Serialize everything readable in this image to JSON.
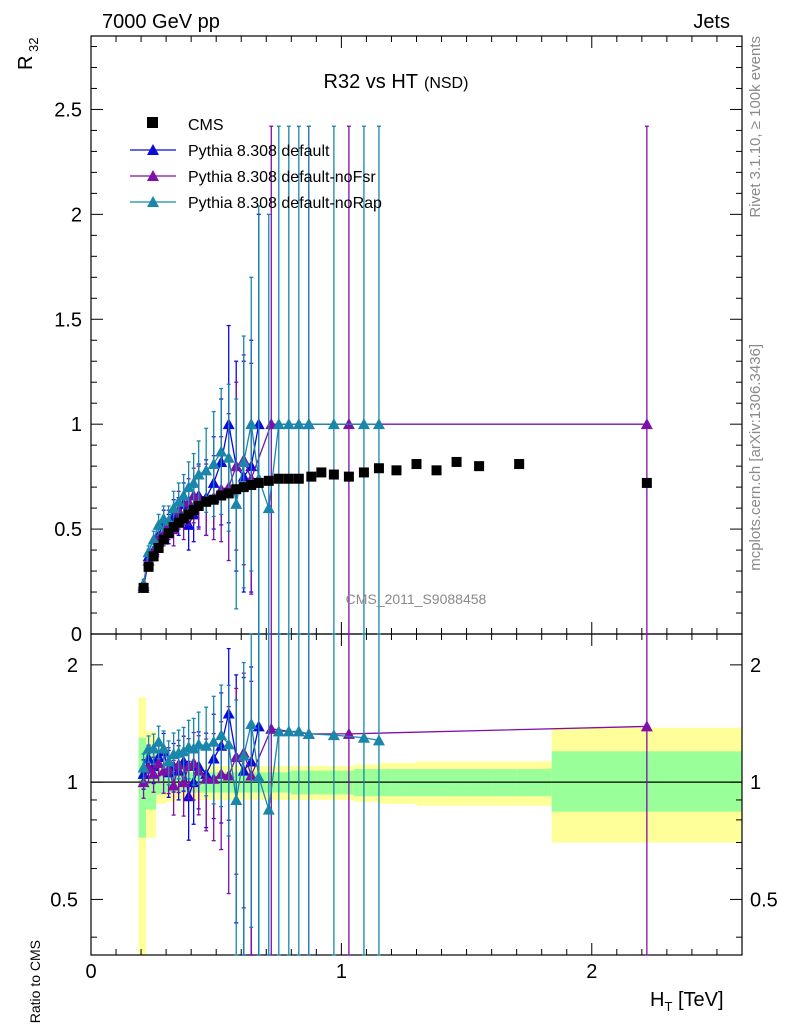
{
  "header": {
    "energy_label": "7000 GeV pp",
    "process_label": "Jets"
  },
  "side_text": {
    "rivet": "Rivet 3.1.10, ≥ 100k events",
    "mcplots": "mcplots.cern.ch [arXiv:1306.3436]"
  },
  "watermark": "CMS_2011_S9088458",
  "colors": {
    "cms": "#000000",
    "default": "#0a0adc",
    "noFsr": "#7f0fa8",
    "noRap": "#1a86aa",
    "band_yellow": "#ffff99",
    "band_green": "#99ff99"
  },
  "chart_data": {
    "type": "scatter",
    "title_main": "R32 vs HT",
    "title_sub": "(NSD)",
    "ylabel_main_base": "R",
    "ylabel_main_sub": "32",
    "ylabel_ratio": "Ratio to CMS",
    "xlabel_base": "H",
    "xlabel_sub": "T",
    "xlabel_unit": " [TeV]",
    "xlim": [
      0,
      2.6
    ],
    "ylim_main": [
      0,
      2.85
    ],
    "ylim_ratio": [
      0.36,
      2.4
    ],
    "x_ticks": [
      "0",
      "1",
      "2"
    ],
    "y_ticks_main": [
      "0",
      "0.5",
      "1",
      "1.5",
      "2",
      "2.5"
    ],
    "y_ticks_ratio": [
      "0.5",
      "1",
      "2"
    ],
    "legend": {
      "placement": "top-left",
      "entries": [
        "CMS",
        "Pythia 8.308 default",
        "Pythia 8.308 default-noFsr",
        "Pythia 8.308 default-noRap"
      ]
    },
    "series": [
      {
        "name": "CMS",
        "x": [
          0.21,
          0.23,
          0.25,
          0.27,
          0.29,
          0.31,
          0.33,
          0.35,
          0.37,
          0.39,
          0.41,
          0.43,
          0.46,
          0.49,
          0.52,
          0.55,
          0.58,
          0.61,
          0.64,
          0.67,
          0.71,
          0.75,
          0.79,
          0.83,
          0.88,
          0.92,
          0.97,
          1.03,
          1.09,
          1.15,
          1.22,
          1.3,
          1.38,
          1.46,
          1.55,
          1.71,
          2.22
        ],
        "y": [
          0.22,
          0.32,
          0.37,
          0.41,
          0.45,
          0.48,
          0.51,
          0.53,
          0.55,
          0.57,
          0.59,
          0.61,
          0.63,
          0.64,
          0.66,
          0.67,
          0.69,
          0.7,
          0.71,
          0.72,
          0.73,
          0.74,
          0.74,
          0.74,
          0.75,
          0.77,
          0.76,
          0.75,
          0.77,
          0.79,
          0.78,
          0.81,
          0.78,
          0.82,
          0.8,
          0.81,
          0.72
        ]
      },
      {
        "name": "Pythia 8.308 default",
        "x": [
          0.21,
          0.23,
          0.25,
          0.27,
          0.29,
          0.31,
          0.33,
          0.35,
          0.37,
          0.39,
          0.41,
          0.43,
          0.46,
          0.49,
          0.52,
          0.55,
          0.58,
          0.61,
          0.64,
          0.67
        ],
        "y": [
          0.23,
          0.37,
          0.4,
          0.47,
          0.53,
          0.5,
          0.56,
          0.56,
          0.62,
          0.52,
          0.57,
          0.66,
          0.65,
          0.72,
          0.82,
          1.0,
          0.8,
          0.75,
          0.8,
          1.0
        ],
        "err": [
          0.02,
          0.03,
          0.04,
          0.05,
          0.06,
          0.07,
          0.08,
          0.09,
          0.1,
          0.12,
          0.13,
          0.15,
          0.18,
          0.22,
          0.3,
          0.47,
          0.5,
          0.55,
          0.6,
          1.0
        ]
      },
      {
        "name": "Pythia 8.308 default-noFsr",
        "x": [
          0.21,
          0.23,
          0.25,
          0.27,
          0.29,
          0.31,
          0.33,
          0.35,
          0.37,
          0.39,
          0.41,
          0.43,
          0.46,
          0.49,
          0.52,
          0.55,
          0.58,
          0.61,
          0.64,
          0.72,
          0.87,
          1.03,
          2.22
        ],
        "y": [
          0.22,
          0.35,
          0.39,
          0.46,
          0.48,
          0.52,
          0.5,
          0.59,
          0.55,
          0.63,
          0.66,
          0.65,
          0.64,
          0.65,
          0.69,
          0.7,
          0.8,
          0.83,
          0.74,
          1.0,
          1.0,
          1.0,
          1.0
        ],
        "err": [
          0.02,
          0.03,
          0.04,
          0.05,
          0.06,
          0.07,
          0.08,
          0.09,
          0.1,
          0.11,
          0.13,
          0.15,
          0.17,
          0.2,
          0.25,
          0.35,
          0.4,
          0.5,
          0.55,
          1.42,
          1.42,
          1.42,
          1.42
        ]
      },
      {
        "name": "Pythia 8.308 default-noRap",
        "x": [
          0.21,
          0.23,
          0.25,
          0.27,
          0.29,
          0.31,
          0.33,
          0.35,
          0.37,
          0.39,
          0.41,
          0.43,
          0.46,
          0.49,
          0.52,
          0.55,
          0.58,
          0.61,
          0.64,
          0.67,
          0.71,
          0.75,
          0.79,
          0.83,
          0.87,
          0.97,
          1.09,
          1.15
        ],
        "y": [
          0.24,
          0.39,
          0.45,
          0.52,
          0.55,
          0.54,
          0.6,
          0.63,
          0.66,
          0.7,
          0.72,
          0.76,
          0.78,
          0.81,
          0.87,
          0.84,
          0.62,
          0.82,
          1.0,
          0.74,
          0.6,
          1.0,
          1.0,
          1.0,
          1.0,
          1.0,
          1.0,
          1.0
        ],
        "err": [
          0.02,
          0.03,
          0.04,
          0.05,
          0.06,
          0.07,
          0.08,
          0.09,
          0.1,
          0.12,
          0.14,
          0.16,
          0.2,
          0.25,
          0.3,
          0.35,
          0.5,
          0.6,
          0.7,
          1.3,
          1.4,
          1.42,
          1.42,
          1.42,
          1.42,
          1.42,
          1.42,
          1.42
        ]
      }
    ],
    "ratio_series": [
      {
        "name": "Pythia 8.308 default",
        "x": [
          0.21,
          0.23,
          0.25,
          0.27,
          0.29,
          0.31,
          0.33,
          0.35,
          0.37,
          0.39,
          0.41,
          0.43,
          0.46,
          0.49,
          0.52,
          0.55,
          0.58,
          0.61,
          0.64,
          0.67
        ],
        "y": [
          1.05,
          1.15,
          1.1,
          1.16,
          1.2,
          1.06,
          1.1,
          1.07,
          1.13,
          0.92,
          1.0,
          1.1,
          1.05,
          1.15,
          1.24,
          1.5,
          1.16,
          1.07,
          1.13,
          1.39
        ]
      },
      {
        "name": "Pythia 8.308 default-noFsr",
        "x": [
          0.21,
          0.23,
          0.25,
          0.27,
          0.29,
          0.31,
          0.33,
          0.35,
          0.37,
          0.39,
          0.41,
          0.43,
          0.46,
          0.49,
          0.52,
          0.55,
          0.58,
          0.61,
          0.64,
          0.72,
          0.87,
          1.03,
          2.22
        ],
        "y": [
          1.0,
          1.09,
          1.05,
          1.12,
          1.07,
          1.08,
          0.98,
          1.11,
          1.0,
          1.1,
          1.12,
          1.07,
          1.02,
          1.02,
          1.05,
          1.04,
          1.16,
          1.19,
          1.04,
          1.37,
          1.33,
          1.33,
          1.39
        ]
      },
      {
        "name": "Pythia 8.308 default-noRap",
        "x": [
          0.21,
          0.23,
          0.25,
          0.27,
          0.29,
          0.31,
          0.33,
          0.35,
          0.37,
          0.39,
          0.41,
          0.43,
          0.46,
          0.49,
          0.52,
          0.55,
          0.58,
          0.61,
          0.64,
          0.67,
          0.71,
          0.75,
          0.79,
          0.83,
          0.87,
          0.97,
          1.09,
          1.15
        ],
        "y": [
          1.09,
          1.22,
          1.22,
          1.27,
          1.22,
          1.13,
          1.18,
          1.19,
          1.2,
          1.23,
          1.22,
          1.25,
          1.24,
          1.27,
          1.32,
          1.25,
          0.9,
          1.17,
          1.41,
          1.03,
          0.85,
          1.35,
          1.35,
          1.35,
          1.33,
          1.32,
          1.3,
          1.28
        ]
      }
    ],
    "uncertainty_bands": {
      "x": [
        0.19,
        0.22,
        0.26,
        0.3,
        0.34,
        0.38,
        0.42,
        0.46,
        0.5,
        0.55,
        0.6,
        0.65,
        0.7,
        0.75,
        0.8,
        0.85,
        0.9,
        0.95,
        1.0,
        1.05,
        1.1,
        1.15,
        1.2,
        1.25,
        1.3,
        1.35,
        1.4,
        1.45,
        1.5,
        1.6,
        1.7,
        1.84,
        2.6
      ],
      "yellow_lo": [
        0.36,
        0.72,
        0.88,
        0.89,
        0.9,
        0.9,
        0.9,
        0.9,
        0.9,
        0.9,
        0.9,
        0.9,
        0.9,
        0.9,
        0.9,
        0.9,
        0.9,
        0.9,
        0.9,
        0.89,
        0.89,
        0.88,
        0.88,
        0.88,
        0.87,
        0.87,
        0.87,
        0.87,
        0.87,
        0.87,
        0.87,
        0.7
      ],
      "yellow_hi": [
        1.65,
        1.35,
        1.12,
        1.11,
        1.1,
        1.1,
        1.1,
        1.1,
        1.1,
        1.1,
        1.1,
        1.1,
        1.1,
        1.1,
        1.1,
        1.1,
        1.1,
        1.1,
        1.1,
        1.11,
        1.11,
        1.12,
        1.12,
        1.12,
        1.13,
        1.13,
        1.13,
        1.13,
        1.13,
        1.13,
        1.13,
        1.38
      ],
      "green_lo": [
        0.72,
        0.85,
        0.93,
        0.94,
        0.94,
        0.94,
        0.94,
        0.94,
        0.94,
        0.94,
        0.94,
        0.94,
        0.94,
        0.94,
        0.93,
        0.93,
        0.93,
        0.93,
        0.93,
        0.92,
        0.92,
        0.92,
        0.92,
        0.92,
        0.92,
        0.92,
        0.92,
        0.92,
        0.92,
        0.92,
        0.92,
        0.84
      ],
      "green_hi": [
        1.3,
        1.18,
        1.07,
        1.06,
        1.06,
        1.06,
        1.06,
        1.06,
        1.06,
        1.06,
        1.06,
        1.06,
        1.06,
        1.06,
        1.07,
        1.07,
        1.07,
        1.07,
        1.07,
        1.08,
        1.08,
        1.08,
        1.08,
        1.08,
        1.08,
        1.08,
        1.08,
        1.08,
        1.08,
        1.08,
        1.08,
        1.2
      ]
    }
  }
}
